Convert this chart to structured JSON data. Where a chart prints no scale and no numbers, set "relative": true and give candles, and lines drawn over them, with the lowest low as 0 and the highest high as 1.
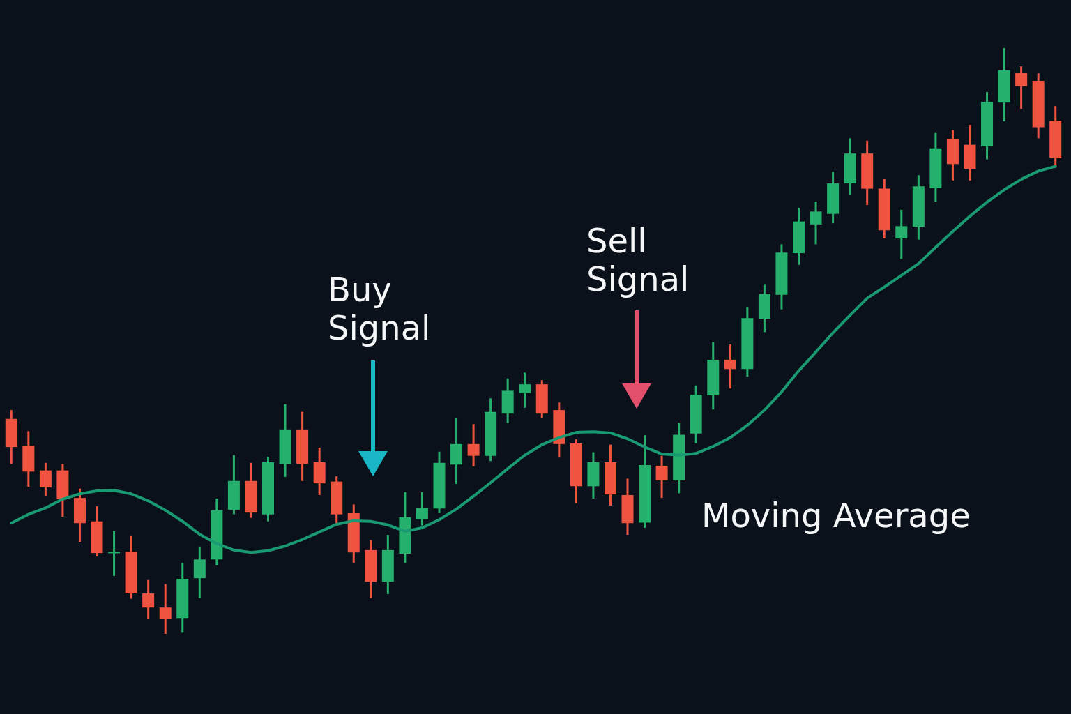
{
  "chart_data": {
    "type": "candlestick",
    "relative": true,
    "categories": [
      null,
      null,
      null,
      null,
      null,
      null,
      null,
      null,
      null,
      null,
      null,
      null,
      null,
      null,
      null,
      null,
      null,
      null,
      null,
      null,
      null,
      null,
      null,
      null,
      null,
      null,
      null,
      null,
      null,
      null,
      null,
      null,
      null,
      null,
      null,
      null,
      null,
      null,
      null,
      null,
      null,
      null,
      null,
      null,
      null,
      null,
      null,
      null,
      null,
      null,
      null,
      null,
      null,
      null,
      null,
      null,
      null,
      null,
      null,
      null,
      null,
      null
    ],
    "ohlc": [
      [
        0.367,
        0.382,
        0.29,
        0.319
      ],
      [
        0.321,
        0.346,
        0.251,
        0.277
      ],
      [
        0.279,
        0.292,
        0.235,
        0.25
      ],
      [
        0.279,
        0.29,
        0.2,
        0.23
      ],
      [
        0.232,
        0.248,
        0.157,
        0.189
      ],
      [
        0.192,
        0.218,
        0.132,
        0.138
      ],
      [
        0.139,
        0.176,
        0.099,
        0.14
      ],
      [
        0.14,
        0.168,
        0.06,
        0.069
      ],
      [
        0.069,
        0.092,
        0.025,
        0.045
      ],
      [
        0.045,
        0.085,
        0,
        0.025
      ],
      [
        0.026,
        0.121,
        0.002,
        0.094
      ],
      [
        0.095,
        0.149,
        0.061,
        0.127
      ],
      [
        0.127,
        0.231,
        0.117,
        0.211
      ],
      [
        0.212,
        0.305,
        0.204,
        0.261
      ],
      [
        0.261,
        0.292,
        0.198,
        0.207
      ],
      [
        0.204,
        0.302,
        0.192,
        0.293
      ],
      [
        0.29,
        0.392,
        0.268,
        0.349
      ],
      [
        0.349,
        0.379,
        0.261,
        0.29
      ],
      [
        0.293,
        0.318,
        0.237,
        0.257
      ],
      [
        0.26,
        0.269,
        0.189,
        0.204
      ],
      [
        0.206,
        0.221,
        0.121,
        0.139
      ],
      [
        0.143,
        0.16,
        0.061,
        0.089
      ],
      [
        0.089,
        0.169,
        0.068,
        0.143
      ],
      [
        0.137,
        0.242,
        0.121,
        0.199
      ],
      [
        0.196,
        0.242,
        0.185,
        0.215
      ],
      [
        0.214,
        0.311,
        0.206,
        0.292
      ],
      [
        0.289,
        0.368,
        0.256,
        0.324
      ],
      [
        0.324,
        0.358,
        0.286,
        0.304
      ],
      [
        0.304,
        0.402,
        0.295,
        0.379
      ],
      [
        0.376,
        0.436,
        0.36,
        0.415
      ],
      [
        0.411,
        0.446,
        0.386,
        0.426
      ],
      [
        0.426,
        0.433,
        0.368,
        0.376
      ],
      [
        0.382,
        0.395,
        0.301,
        0.324
      ],
      [
        0.325,
        0.332,
        0.223,
        0.252
      ],
      [
        0.252,
        0.31,
        0.231,
        0.293
      ],
      [
        0.293,
        0.323,
        0.219,
        0.238
      ],
      [
        0.237,
        0.265,
        0.169,
        0.189
      ],
      [
        0.19,
        0.339,
        0.181,
        0.288
      ],
      [
        0.287,
        0.304,
        0.232,
        0.262
      ],
      [
        0.262,
        0.36,
        0.24,
        0.34
      ],
      [
        0.342,
        0.424,
        0.325,
        0.408
      ],
      [
        0.407,
        0.498,
        0.383,
        0.468
      ],
      [
        0.468,
        0.494,
        0.419,
        0.452
      ],
      [
        0.452,
        0.558,
        0.439,
        0.539
      ],
      [
        0.538,
        0.596,
        0.515,
        0.58
      ],
      [
        0.579,
        0.665,
        0.554,
        0.651
      ],
      [
        0.65,
        0.727,
        0.63,
        0.704
      ],
      [
        0.699,
        0.738,
        0.665,
        0.721
      ],
      [
        0.717,
        0.789,
        0.701,
        0.769
      ],
      [
        0.769,
        0.846,
        0.749,
        0.82
      ],
      [
        0.82,
        0.842,
        0.732,
        0.76
      ],
      [
        0.76,
        0.777,
        0.675,
        0.689
      ],
      [
        0.675,
        0.724,
        0.64,
        0.696
      ],
      [
        0.695,
        0.783,
        0.673,
        0.764
      ],
      [
        0.761,
        0.855,
        0.738,
        0.829
      ],
      [
        0.845,
        0.86,
        0.774,
        0.802
      ],
      [
        0.835,
        0.869,
        0.774,
        0.794
      ],
      [
        0.832,
        0.925,
        0.81,
        0.908
      ],
      [
        0.907,
        1,
        0.875,
        0.962
      ],
      [
        0.958,
        0.969,
        0.896,
        0.935
      ],
      [
        0.944,
        0.957,
        0.846,
        0.865
      ],
      [
        0.876,
        0.901,
        0.796,
        0.812
      ]
    ],
    "colors": [
      "#ef5440",
      "#ef5440",
      "#ef5440",
      "#ef5440",
      "#ef5440",
      "#ef5440",
      "#26b06d",
      "#ef5440",
      "#ef5440",
      "#ef5440",
      "#26b06d",
      "#26b06d",
      "#26b06d",
      "#26b06d",
      "#ef5440",
      "#26b06d",
      "#26b06d",
      "#ef5440",
      "#ef5440",
      "#ef5440",
      "#ef5440",
      "#ef5440",
      "#26b06d",
      "#26b06d",
      "#26b06d",
      "#26b06d",
      "#26b06d",
      "#ef5440",
      "#26b06d",
      "#26b06d",
      "#26b06d",
      "#ef5440",
      "#ef5440",
      "#ef5440",
      "#26b06d",
      "#ef5440",
      "#ef5440",
      "#26b06d",
      "#ef5440",
      "#26b06d",
      "#26b06d",
      "#26b06d",
      "#ef5440",
      "#26b06d",
      "#26b06d",
      "#26b06d",
      "#26b06d",
      "#26b06d",
      "#26b06d",
      "#26b06d",
      "#ef5440",
      "#ef5440",
      "#26b06d",
      "#26b06d",
      "#26b06d",
      "#ef5440",
      "#ef5440",
      "#26b06d",
      "#26b06d",
      "#ef5440",
      "#ef5440",
      "#ef5440"
    ],
    "series": [
      {
        "type": "line",
        "color": "#1a9a72",
        "values": [
          0.189,
          0.204,
          0.215,
          0.23,
          0.239,
          0.244,
          0.245,
          0.239,
          0.227,
          0.211,
          0.192,
          0.17,
          0.154,
          0.143,
          0.139,
          0.142,
          0.15,
          0.161,
          0.174,
          0.187,
          0.193,
          0.192,
          0.186,
          0.175,
          0.181,
          0.195,
          0.213,
          0.235,
          0.258,
          0.282,
          0.305,
          0.323,
          0.335,
          0.344,
          0.345,
          0.343,
          0.333,
          0.319,
          0.307,
          0.305,
          0.308,
          0.32,
          0.335,
          0.356,
          0.382,
          0.413,
          0.449,
          0.481,
          0.514,
          0.544,
          0.573,
          0.592,
          0.612,
          0.632,
          0.66,
          0.687,
          0.713,
          0.737,
          0.758,
          0.776,
          0.79,
          0.798
        ]
      }
    ],
    "annotations": [
      "Buy Signal",
      "Sell Signal",
      "Moving Average"
    ]
  }
}
